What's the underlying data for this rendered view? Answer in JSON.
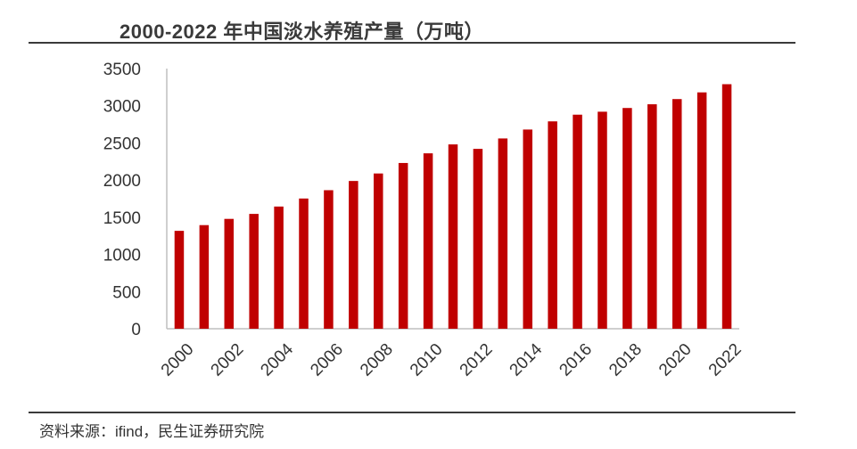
{
  "header": {
    "title": "2000-2022 年中国淡水养殖产量（万吨）"
  },
  "footer": {
    "source": "资料来源：ifind，民生证券研究院"
  },
  "colors": {
    "bar": "#c00000",
    "axis": "#bfbfbf"
  },
  "chart_data": {
    "type": "bar",
    "title": "2000-2022 年中国淡水养殖产量（万吨）",
    "xlabel": "",
    "ylabel": "",
    "ylim": [
      0,
      3500
    ],
    "yticks": [
      0,
      500,
      1000,
      1500,
      2000,
      2500,
      3000,
      3500
    ],
    "grid": false,
    "categories": [
      "2000",
      "2001",
      "2002",
      "2003",
      "2004",
      "2005",
      "2006",
      "2007",
      "2008",
      "2009",
      "2010",
      "2011",
      "2012",
      "2013",
      "2014",
      "2015",
      "2016",
      "2017",
      "2018",
      "2019",
      "2020",
      "2021",
      "2022"
    ],
    "xtick_labels": [
      "2000",
      "2002",
      "2004",
      "2006",
      "2008",
      "2010",
      "2012",
      "2014",
      "2016",
      "2018",
      "2020",
      "2022"
    ],
    "values": [
      1317,
      1394,
      1478,
      1545,
      1644,
      1752,
      1864,
      1988,
      2089,
      2230,
      2360,
      2480,
      2420,
      2560,
      2680,
      2790,
      2880,
      2920,
      2970,
      3020,
      3090,
      3180,
      3290
    ]
  }
}
